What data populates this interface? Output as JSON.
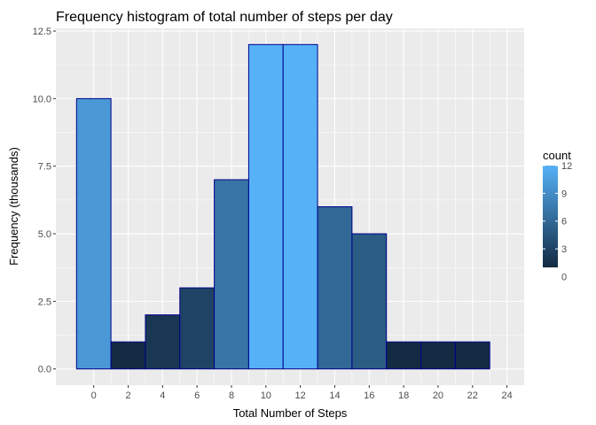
{
  "chart_data": {
    "type": "bar",
    "title": "Frequency histogram of total number of steps per day",
    "xlabel": "Total Number of Steps",
    "ylabel": "Frequency (thousands)",
    "bins": [
      {
        "start": -1,
        "end": 1,
        "count": 10
      },
      {
        "start": 1,
        "end": 3,
        "count": 1
      },
      {
        "start": 3,
        "end": 5,
        "count": 2
      },
      {
        "start": 5,
        "end": 7,
        "count": 3
      },
      {
        "start": 7,
        "end": 9,
        "count": 7
      },
      {
        "start": 9,
        "end": 11,
        "count": 12
      },
      {
        "start": 11,
        "end": 13,
        "count": 12
      },
      {
        "start": 13,
        "end": 15,
        "count": 6
      },
      {
        "start": 15,
        "end": 17,
        "count": 5
      },
      {
        "start": 17,
        "end": 19,
        "count": 1
      },
      {
        "start": 19,
        "end": 21,
        "count": 1
      },
      {
        "start": 21,
        "end": 23,
        "count": 1
      }
    ],
    "xlim": [
      -2.2,
      25.0
    ],
    "ylim": [
      -0.6,
      12.6
    ],
    "x_ticks": [
      0,
      2,
      4,
      6,
      8,
      10,
      12,
      14,
      16,
      18,
      20,
      22,
      24
    ],
    "y_ticks": [
      0,
      2.5,
      5,
      7.5,
      10,
      12.5
    ],
    "y_tick_labels": [
      "0.0",
      "2.5",
      "5.0",
      "7.5",
      "10.0",
      "12.5"
    ],
    "grid": true,
    "legend": {
      "title": "count",
      "placement": "right",
      "breaks": [
        0,
        3,
        6,
        9,
        12
      ],
      "range": [
        1,
        12
      ],
      "low_color": "#132B43",
      "high_color": "#56B1F7"
    },
    "bar_outline_color": "#00008B",
    "panel_background": "#EBEBEB",
    "grid_color": "#FFFFFF"
  }
}
